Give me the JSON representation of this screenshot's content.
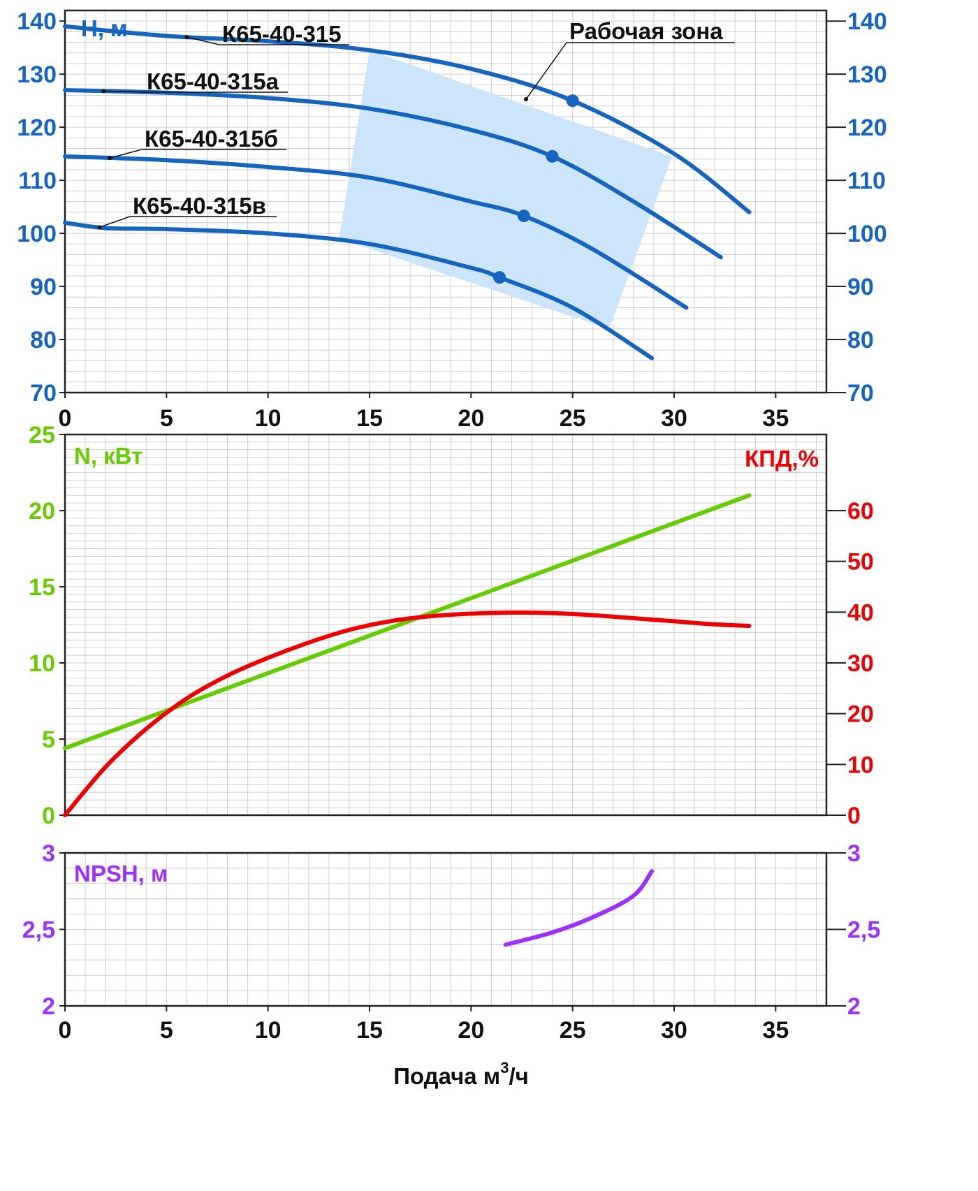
{
  "chart_data": [
    {
      "type": "line",
      "name_key": "head",
      "ylabel": "H, м",
      "xlim": [
        0,
        37.5
      ],
      "ylim": [
        70,
        142
      ],
      "x_ticks": [
        0,
        5,
        10,
        15,
        20,
        25,
        30,
        35
      ],
      "y_ticks": [
        70,
        80,
        90,
        100,
        110,
        120,
        130,
        140
      ],
      "grid": true,
      "series": [
        {
          "name": "К65-40-315",
          "x": [
            0,
            5,
            10,
            15,
            20,
            25,
            30,
            33.7
          ],
          "y": [
            139,
            137.2,
            136.2,
            134.5,
            131,
            125,
            115,
            104
          ],
          "operating_point": [
            25,
            125
          ]
        },
        {
          "name": "К65-40-315а",
          "x": [
            0,
            5,
            10,
            15,
            20,
            24,
            28,
            32.3
          ],
          "y": [
            127,
            126.5,
            125.5,
            123.5,
            119.5,
            114.5,
            106,
            95.5
          ],
          "operating_point": [
            24,
            114.5
          ]
        },
        {
          "name": "К65-40-315б",
          "x": [
            0,
            5,
            10,
            15,
            20,
            22.6,
            26,
            30.6
          ],
          "y": [
            114.5,
            113.8,
            112.5,
            110.5,
            106,
            103.3,
            97,
            86
          ],
          "operating_point": [
            22.6,
            103.3
          ]
        },
        {
          "name": "К65-40-315в",
          "x": [
            0,
            2,
            5,
            10,
            15,
            20,
            21.4,
            25,
            28.9
          ],
          "y": [
            102,
            101,
            100.8,
            100,
            98,
            93.5,
            91.7,
            86,
            76.5
          ],
          "operating_point": [
            21.4,
            91.7
          ]
        }
      ],
      "annotations": [
        {
          "text": "Рабочая зона"
        }
      ],
      "working_zone": [
        [
          15,
          134.5
        ],
        [
          29.9,
          114.5
        ],
        [
          26.8,
          82
        ],
        [
          13.5,
          99
        ]
      ]
    },
    {
      "type": "line",
      "name_key": "power_efficiency",
      "ylabel_left": "N, кВт",
      "ylabel_right": "КПД,%",
      "xlim": [
        0,
        37.5
      ],
      "ylim_left": [
        0,
        25
      ],
      "ylim_right": [
        0,
        75
      ],
      "x_ticks": [
        0,
        5,
        10,
        15,
        20,
        25,
        30,
        35
      ],
      "y_ticks_left": [
        0,
        5,
        10,
        15,
        20,
        25
      ],
      "y_ticks_right": [
        0,
        10,
        20,
        30,
        40,
        50,
        60
      ],
      "grid": true,
      "series": [
        {
          "name": "N",
          "axis": "left",
          "color": "#66cc00",
          "x": [
            0,
            33.7
          ],
          "y": [
            4.4,
            21
          ]
        },
        {
          "name": "КПД",
          "axis": "right",
          "color": "#ee0000",
          "x": [
            0,
            2,
            4,
            6,
            8,
            10,
            12,
            14,
            16,
            18,
            20,
            22,
            24,
            26,
            28,
            30,
            32,
            33.7
          ],
          "y": [
            0,
            9.5,
            17,
            23,
            27.5,
            31,
            34,
            36.5,
            38.2,
            39.2,
            39.7,
            39.9,
            39.8,
            39.4,
            38.8,
            38.2,
            37.6,
            37.3
          ]
        }
      ]
    },
    {
      "type": "line",
      "name_key": "npsh",
      "ylabel": "NPSH, м",
      "xlabel": "Подача м",
      "xlabel_sup": "3",
      "xlabel_tail": "/ч",
      "xlim": [
        0,
        37.5
      ],
      "ylim": [
        2,
        3
      ],
      "x_ticks": [
        0,
        5,
        10,
        15,
        20,
        25,
        30,
        35
      ],
      "y_ticks": [
        2,
        2.5,
        3
      ],
      "y_tick_labels": [
        "2",
        "2,5",
        "3"
      ],
      "grid": true,
      "series": [
        {
          "name": "NPSH",
          "color": "#9b30ff",
          "x": [
            21.7,
            24,
            26,
            28,
            28.9
          ],
          "y": [
            2.4,
            2.48,
            2.58,
            2.72,
            2.88
          ]
        }
      ]
    }
  ],
  "colors": {
    "head": "#1565c0",
    "head_tick": "#1565c0",
    "zone": "#cce5fb",
    "power": "#66cc00",
    "efficiency": "#ee0000",
    "npsh": "#9b30ff",
    "grid": "#cfcfcf",
    "axis": "#222222"
  }
}
